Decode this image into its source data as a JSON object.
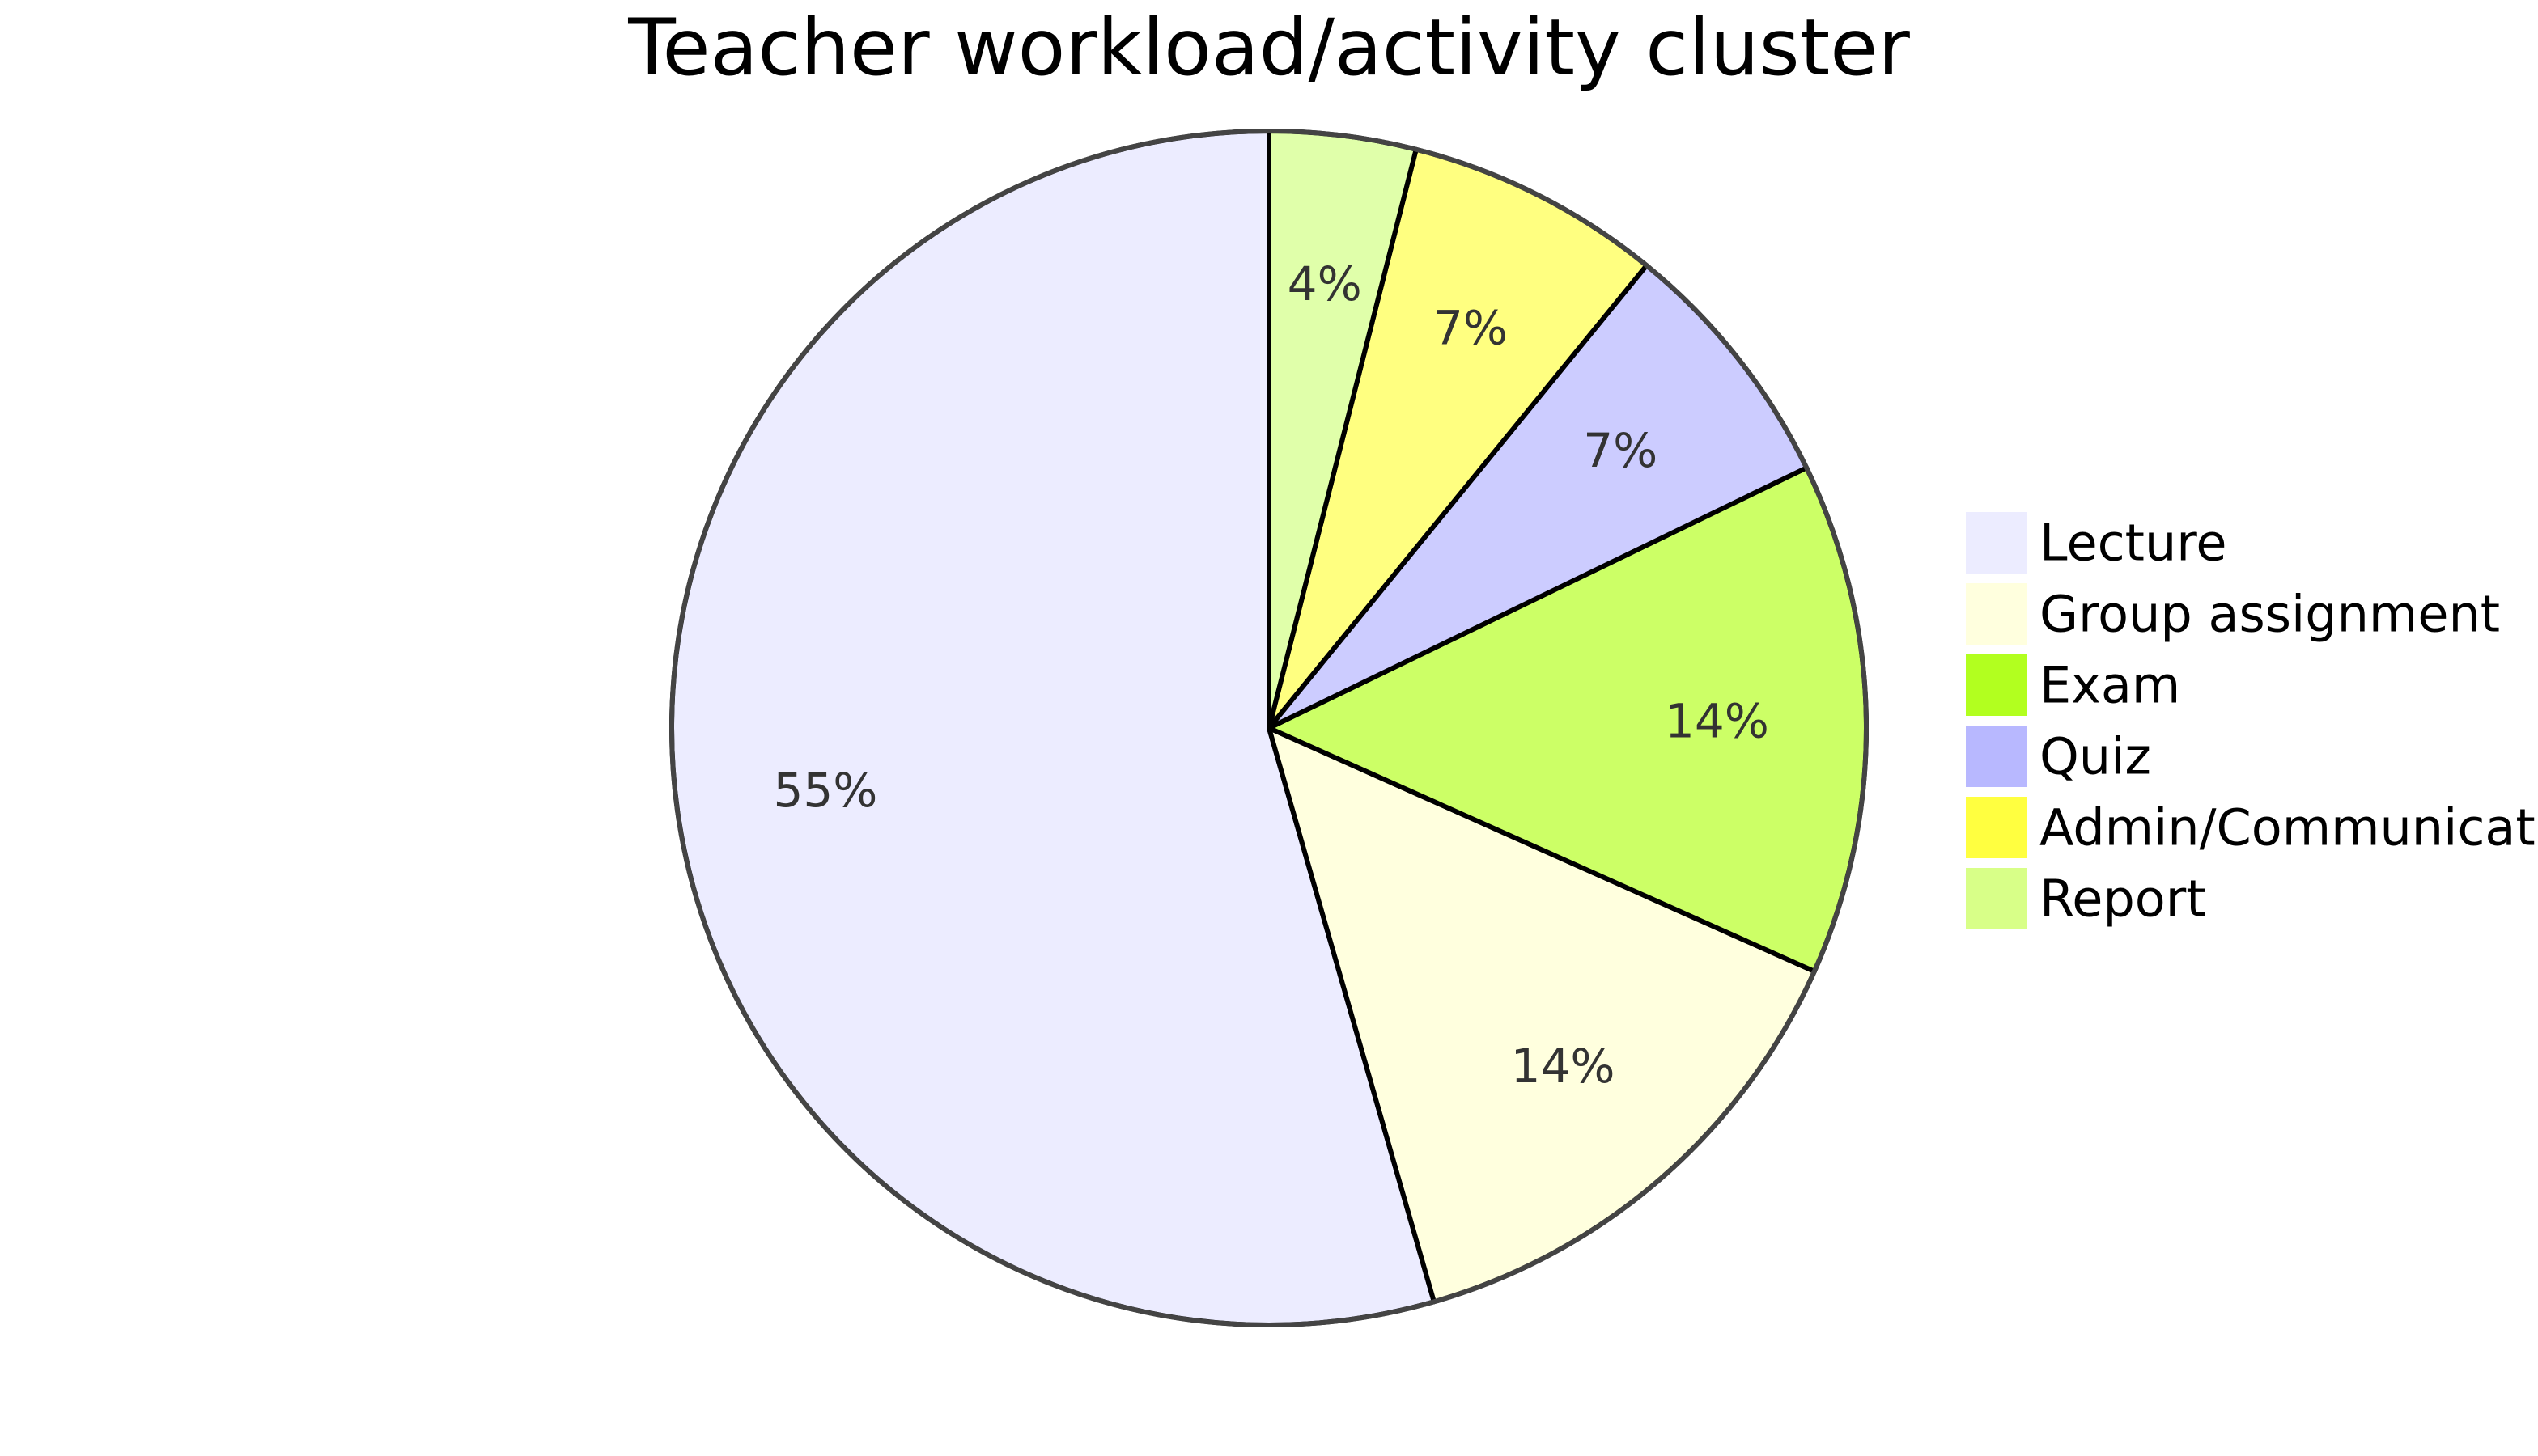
{
  "chart_data": {
    "type": "pie",
    "title": "Teacher workload/activity cluster",
    "slices": [
      {
        "label": "Lecture",
        "value": 55,
        "display": "55%",
        "color": "#ececff"
      },
      {
        "label": "Group assignment",
        "value": 14,
        "display": "14%",
        "color": "#ffffde"
      },
      {
        "label": "Exam",
        "value": 14,
        "display": "14%",
        "color": "#ccff66"
      },
      {
        "label": "Quiz",
        "value": 7,
        "display": "7%",
        "color": "#ccccff"
      },
      {
        "label": "Admin/Communication",
        "value": 7,
        "display": "7%",
        "color": "#ffff80"
      },
      {
        "label": "Report",
        "value": 4,
        "display": "4%",
        "color": "#e0ffaa"
      }
    ],
    "legend_swatch_colors": [
      "#ececff",
      "#ffffde",
      "#b2ff1f",
      "#b8b8ff",
      "#ffff40",
      "#d8ff88"
    ],
    "legend_position": "right",
    "stroke_color": "#000000",
    "outline_color": "#444444"
  }
}
